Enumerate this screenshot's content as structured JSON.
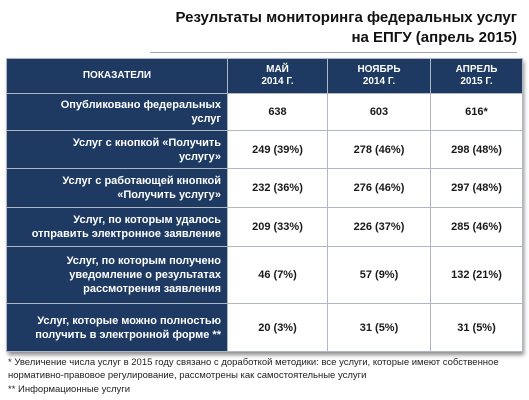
{
  "title": {
    "line1": "Результаты мониторинга федеральных услуг",
    "line2": "на ЕПГУ (апрель 2015)"
  },
  "table": {
    "headers": [
      [
        "ПОКАЗАТЕЛИ"
      ],
      [
        "МАЙ",
        "2014 Г."
      ],
      [
        "НОЯБРЬ",
        "2014 Г."
      ],
      [
        "АПРЕЛЬ",
        "2015 Г."
      ]
    ],
    "rows": [
      {
        "label": [
          "Опубликовано федеральных",
          "услуг"
        ],
        "values": [
          "638",
          "603",
          "616*"
        ]
      },
      {
        "label": [
          "Услуг с кнопкой «Получить",
          "услугу»"
        ],
        "values": [
          "249 (39%)",
          "278 (46%)",
          "298 (48%)"
        ]
      },
      {
        "label": [
          "Услуг с работающей кнопкой",
          "«Получить услугу»"
        ],
        "values": [
          "232 (36%)",
          "276 (46%)",
          "297 (48%)"
        ]
      },
      {
        "label": [
          "Услуг, по которым удалось",
          "отправить электронное заявление"
        ],
        "values": [
          "209 (33%)",
          "226 (37%)",
          "285 (46%)"
        ]
      },
      {
        "label": [
          "Услуг, по которым получено",
          "уведомление о результатах",
          "рассмотрения заявления"
        ],
        "values": [
          "46 (7%)",
          "57 (9%)",
          "132 (21%)"
        ]
      },
      {
        "label": [
          "Услуг, которые можно полностью",
          "получить в электронной форме **"
        ],
        "values": [
          "20 (3%)",
          "31 (5%)",
          "31 (5%)"
        ]
      }
    ]
  },
  "footnotes": {
    "note1": "* Увеличение числа услуг в 2015 году связано с доработкой методики: все услуги, которые имеют собственное нормативно-правовое регулирование, рассмотрены как самостоятельные услуги",
    "note2": "** Информационные услуги"
  },
  "colors": {
    "header_bg": "#1e3a62",
    "header_text": "#ffffff",
    "cell_bg": "#ffffff"
  }
}
